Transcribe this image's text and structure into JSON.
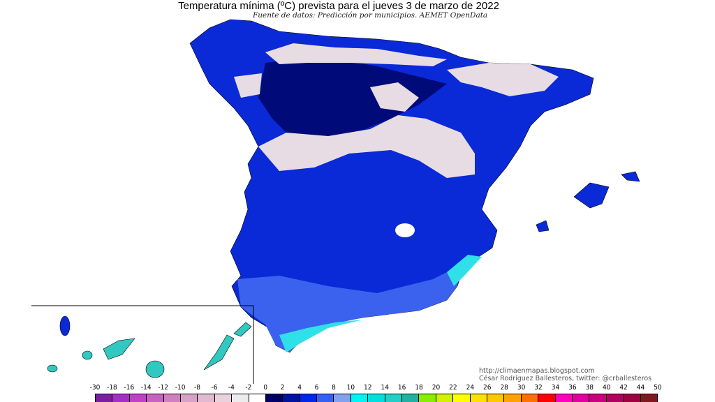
{
  "title": "Temperatura mínima (ºC) prevista para el jueves 3 de marzo de 2022",
  "subtitle": "Fuente de datos: Predicción por municipios. AEMET OpenData",
  "credits": [
    "http://climaenmapas.blogspot.com",
    "César Rodríguez Ballesteros, twitter: @crballesteros"
  ],
  "legend": {
    "unit": "ºC",
    "labels": [
      "-30",
      "-18",
      "-16",
      "-14",
      "-12",
      "-10",
      "-8",
      "-6",
      "-4",
      "-2",
      "0",
      "2",
      "4",
      "6",
      "8",
      "10",
      "12",
      "14",
      "16",
      "18",
      "20",
      "22",
      "24",
      "26",
      "28",
      "30",
      "32",
      "34",
      "36",
      "38",
      "40",
      "42",
      "44",
      "50"
    ],
    "colors": [
      "#7a1fa2",
      "#a52fc6",
      "#c040c8",
      "#c862c2",
      "#d080c0",
      "#d8a2c8",
      "#e0bad0",
      "#e8d2dc",
      "#ececec",
      "#ffffff",
      "#000066",
      "#0012a0",
      "#0026e6",
      "#3462f0",
      "#82a2f0",
      "#00f4f4",
      "#00dede",
      "#22cfc8",
      "#22b0a2",
      "#84f000",
      "#d2f000",
      "#ffff00",
      "#ffe000",
      "#ffc800",
      "#ffa200",
      "#ff7000",
      "#ff0000",
      "#ff00c0",
      "#e000a0",
      "#c80080",
      "#b00060",
      "#a00040",
      "#801820"
    ]
  },
  "map_colors": {
    "frost": "#e8dce4",
    "cold": "#000a78",
    "mid": "#0a2ad8",
    "mild": "#3a62ee",
    "coast": "#30e0e8",
    "canarias": "#30c8c0"
  }
}
